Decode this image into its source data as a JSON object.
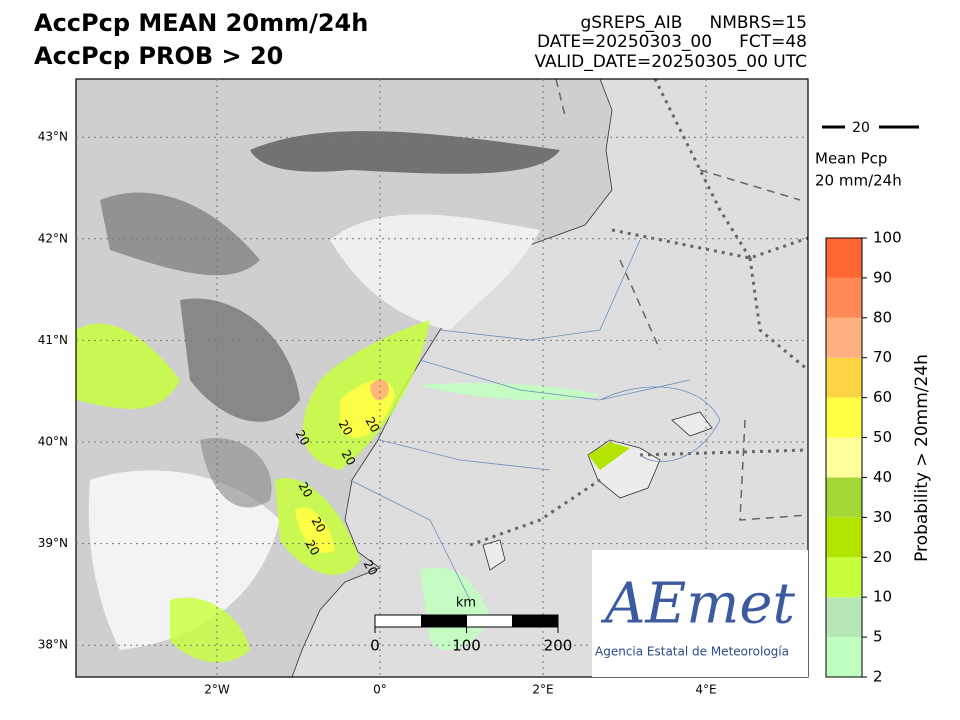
{
  "header": {
    "title_lines": [
      "AccPcp MEAN 20mm/24h",
      "AccPcp PROB > 20"
    ],
    "info_lines": [
      "gSREPS_AIB     NMBRS=15",
      "DATE=20250303_00     FCT=48",
      "VALID_DATE=20250305_00 UTC"
    ]
  },
  "map": {
    "lat_ticks": [
      {
        "value": 43,
        "label": "43°N"
      },
      {
        "value": 42,
        "label": "42°N"
      },
      {
        "value": 41,
        "label": "41°N"
      },
      {
        "value": 40,
        "label": "40°N"
      },
      {
        "value": 39,
        "label": "39°N"
      },
      {
        "value": 38,
        "label": "38°N"
      }
    ],
    "lon_ticks": [
      {
        "value": -2,
        "label": "2°W"
      },
      {
        "value": 0,
        "label": "0°"
      },
      {
        "value": 2,
        "label": "2°E"
      },
      {
        "value": 4,
        "label": "4°E"
      }
    ],
    "contour_labels": [
      "20",
      "20",
      "20",
      "20",
      "20",
      "20",
      "20",
      "20"
    ],
    "scale_bar": {
      "unit": "km",
      "ticks": [
        0,
        100,
        200
      ]
    }
  },
  "legend": {
    "contour_level": "20",
    "title_lines": [
      "Mean Pcp",
      "20 mm/24h"
    ]
  },
  "colorbar": {
    "label": "Probability > 20mm/24h",
    "levels": [
      2,
      5,
      10,
      20,
      30,
      40,
      50,
      60,
      70,
      80,
      90,
      100
    ],
    "colors": [
      "#c1ffc1",
      "#b5e6b5",
      "#c8ff3c",
      "#b2e400",
      "#a3d836",
      "#ffff9c",
      "#ffff44",
      "#ffd444",
      "#ffb080",
      "#ff8a55",
      "#ff6633"
    ]
  },
  "logo": {
    "name": "AEmet",
    "subtitle": "Agencia Estatal de Meteorología"
  }
}
